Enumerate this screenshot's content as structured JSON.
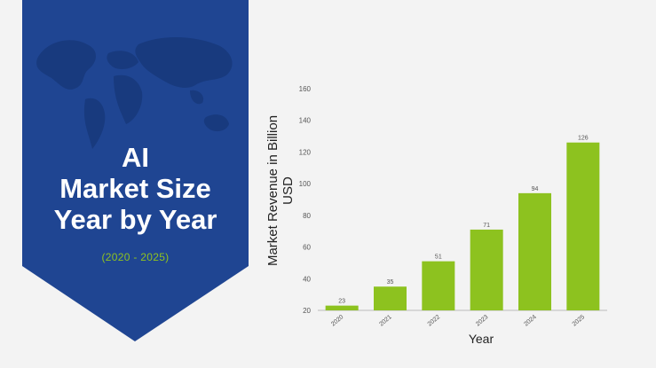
{
  "banner": {
    "title_lines": [
      "AI",
      "Market Size",
      "Year by Year"
    ],
    "subtitle": "(2020 - 2025)",
    "colors": {
      "background": "#1f4592",
      "map": "#183a7e",
      "subtitle": "#8fc31f"
    },
    "decoration": "world-map"
  },
  "chart_data": {
    "type": "bar",
    "categories": [
      "2020",
      "2021",
      "2022",
      "2023",
      "2024",
      "2025"
    ],
    "values": [
      23,
      35,
      51,
      71,
      94,
      126
    ],
    "data_labels": [
      "23",
      "35",
      "51",
      "71",
      "94",
      "126"
    ],
    "title": "",
    "xlabel": "Year",
    "ylabel": "Market Revenue in Billion USD",
    "ylim": [
      20,
      160
    ],
    "yticks": [
      20,
      40,
      60,
      80,
      100,
      120,
      140,
      160
    ],
    "grid": false,
    "legend": "none",
    "bar_color": "#8dc21f"
  }
}
